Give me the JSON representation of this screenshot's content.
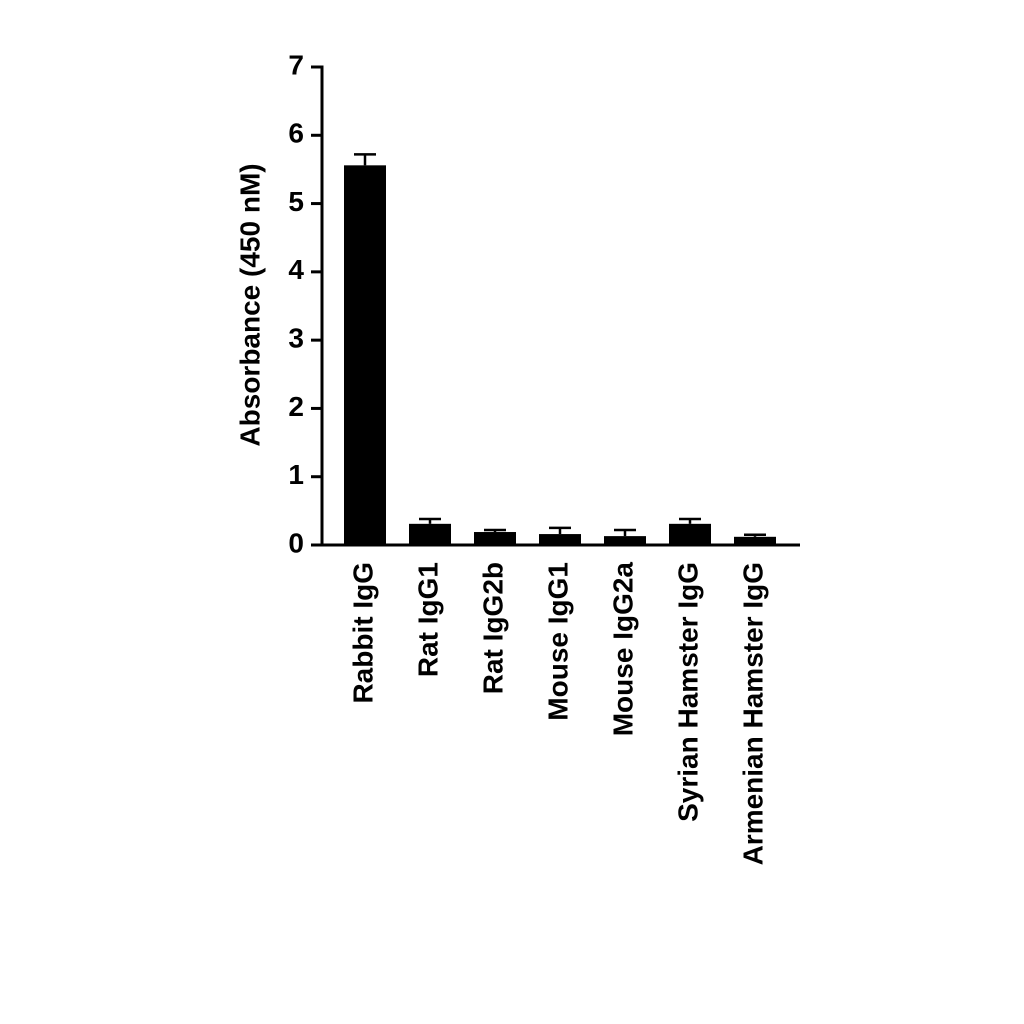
{
  "chart_data": {
    "type": "bar",
    "y_label": "Absorbance (450 nM)",
    "categories": [
      "Rabbit IgG",
      "Rat IgG1",
      "Rat IgG2b",
      "Mouse IgG1",
      "Mouse IgG2a",
      "Syrian Hamster IgG",
      "Armenian Hamster IgG"
    ],
    "values": [
      5.56,
      0.31,
      0.19,
      0.16,
      0.13,
      0.31,
      0.12
    ],
    "errors": [
      0.16,
      0.07,
      0.03,
      0.09,
      0.09,
      0.07,
      0.03
    ],
    "color": "#000000",
    "ylim": [
      0,
      7
    ],
    "yticks": [
      0,
      1,
      2,
      3,
      4,
      5,
      6,
      7
    ],
    "grid": false
  }
}
